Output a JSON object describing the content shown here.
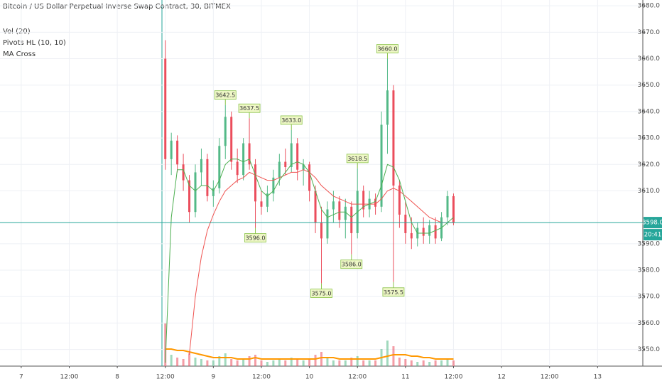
{
  "chart_data": {
    "type": "candlestick",
    "title": "Bitcoin / US Dollar Perpetual Inverse Swap Contract, 30, BITMEX",
    "indicators": [
      "Vol (20)",
      "Pivots HL (10, 10)",
      "MA Cross"
    ],
    "up_color": "#53b987",
    "down_color": "#eb4d5c",
    "grid": true,
    "ylim": [
      3543.7,
      3682.2
    ],
    "yticks": [
      {
        "value": 3550,
        "label": "3550.0"
      },
      {
        "value": 3560,
        "label": "3560.0"
      },
      {
        "value": 3570,
        "label": "3570.0"
      },
      {
        "value": 3580,
        "label": "3580.0"
      },
      {
        "value": 3590,
        "label": "3590.0"
      },
      {
        "value": 3610,
        "label": "3610.0"
      },
      {
        "value": 3620,
        "label": "3620.0"
      },
      {
        "value": 3630,
        "label": "3630.0"
      },
      {
        "value": 3640,
        "label": "3640.0"
      },
      {
        "value": 3650,
        "label": "3650.0"
      },
      {
        "value": 3660,
        "label": "3660.0"
      },
      {
        "value": 3670,
        "label": "3670.0"
      },
      {
        "value": 3680,
        "label": "3680.0"
      }
    ],
    "xlim": [
      -5.3,
      155.3
    ],
    "xticks": [
      {
        "value": 0,
        "label": "7"
      },
      {
        "value": 12,
        "label": "12:00"
      },
      {
        "value": 24,
        "label": "8"
      },
      {
        "value": 36,
        "label": "12:00"
      },
      {
        "value": 48,
        "label": "9"
      },
      {
        "value": 60,
        "label": "12:00"
      },
      {
        "value": 72,
        "label": "10"
      },
      {
        "value": 84,
        "label": "12:00"
      },
      {
        "value": 96,
        "label": "11"
      },
      {
        "value": 108,
        "label": "12:00"
      },
      {
        "value": 120,
        "label": "12"
      },
      {
        "value": 132,
        "label": "12:00"
      },
      {
        "value": 144,
        "label": "13"
      }
    ],
    "x": [
      36,
      37.5,
      39,
      40.5,
      42,
      43.5,
      45,
      46.5,
      48,
      49.5,
      51,
      52.5,
      54,
      55.5,
      57,
      58.5,
      60,
      61.5,
      63,
      64.5,
      66,
      67.5,
      69,
      70.5,
      72,
      73.5,
      75,
      76.5,
      78,
      79.5,
      81,
      82.5,
      84,
      85.5,
      87,
      88.5,
      90,
      91.5,
      93,
      94.5,
      96,
      97.5,
      99,
      100.5,
      102,
      103.5,
      105,
      106.5,
      108
    ],
    "candles": [
      [
        3660,
        3667,
        3618,
        3622
      ],
      [
        3622,
        3632,
        3616,
        3629
      ],
      [
        3629,
        3631,
        3617,
        3620
      ],
      [
        3620,
        3624,
        3610,
        3614
      ],
      [
        3614,
        3616,
        3598,
        3602
      ],
      [
        3602,
        3620,
        3600,
        3617
      ],
      [
        3617,
        3626,
        3612,
        3622
      ],
      [
        3622,
        3624,
        3606,
        3608
      ],
      [
        3608,
        3614,
        3604,
        3611
      ],
      [
        3611,
        3630,
        3609,
        3627
      ],
      [
        3627,
        3642.5,
        3622,
        3638
      ],
      [
        3638,
        3640,
        3618,
        3621
      ],
      [
        3621,
        3626,
        3613,
        3616
      ],
      [
        3616,
        3630,
        3614,
        3628
      ],
      [
        3628,
        3637.5,
        3618,
        3620
      ],
      [
        3620,
        3622,
        3596,
        3606
      ],
      [
        3606,
        3610,
        3601,
        3604
      ],
      [
        3604,
        3612,
        3602,
        3609
      ],
      [
        3609,
        3618,
        3606,
        3615
      ],
      [
        3615,
        3624,
        3612,
        3621
      ],
      [
        3621,
        3626,
        3616,
        3619
      ],
      [
        3619,
        3633,
        3617,
        3628
      ],
      [
        3628,
        3630,
        3614,
        3618
      ],
      [
        3618,
        3622,
        3612,
        3620
      ],
      [
        3620,
        3621,
        3606,
        3610
      ],
      [
        3610,
        3612,
        3594,
        3598
      ],
      [
        3598,
        3604,
        3575,
        3592
      ],
      [
        3592,
        3606,
        3590,
        3603
      ],
      [
        3603,
        3610,
        3598,
        3606
      ],
      [
        3606,
        3608,
        3596,
        3599
      ],
      [
        3599,
        3607,
        3592,
        3604
      ],
      [
        3604,
        3606,
        3586,
        3594
      ],
      [
        3594,
        3618.5,
        3592,
        3610
      ],
      [
        3610,
        3612,
        3600,
        3603
      ],
      [
        3603,
        3610,
        3600,
        3607
      ],
      [
        3607,
        3609,
        3601,
        3604
      ],
      [
        3604,
        3640,
        3602,
        3635
      ],
      [
        3635,
        3660,
        3624,
        3648
      ],
      [
        3648,
        3650,
        3575.5,
        3612
      ],
      [
        3612,
        3614,
        3596,
        3601
      ],
      [
        3601,
        3606,
        3590,
        3594
      ],
      [
        3594,
        3600,
        3588,
        3592
      ],
      [
        3592,
        3598,
        3589,
        3596
      ],
      [
        3596,
        3600,
        3590,
        3593
      ],
      [
        3593,
        3599,
        3590,
        3597
      ],
      [
        3597,
        3600,
        3590,
        3592
      ],
      [
        3592,
        3602,
        3591,
        3600
      ],
      [
        3600,
        3610,
        3597,
        3608
      ],
      [
        3608,
        3609,
        3597,
        3598
      ]
    ],
    "ma_fast": {
      "color": "#4caf50",
      "values": [
        3545,
        3600,
        3618,
        3618,
        3612,
        3610,
        3612,
        3612,
        3610,
        3614,
        3620,
        3622,
        3622,
        3621,
        3622,
        3616,
        3610,
        3608,
        3610,
        3614,
        3617,
        3620,
        3621,
        3620,
        3617,
        3610,
        3603,
        3600,
        3601,
        3602,
        3602,
        3600,
        3602,
        3604,
        3605,
        3606,
        3612,
        3620,
        3619,
        3614,
        3606,
        3598,
        3594,
        3594,
        3594,
        3595,
        3596,
        3598,
        3600
      ]
    },
    "ma_slow": {
      "color": "#ef5350",
      "values": [
        null,
        null,
        null,
        null,
        3548,
        3570,
        3585,
        3595,
        3601,
        3606,
        3610,
        3612,
        3614,
        3615,
        3617,
        3616,
        3615,
        3614,
        3614,
        3615,
        3616,
        3617,
        3617,
        3618,
        3617,
        3615,
        3612,
        3610,
        3608,
        3607,
        3606,
        3605,
        3605,
        3605,
        3605,
        3605,
        3607,
        3610,
        3611,
        3610,
        3608,
        3606,
        3604,
        3602,
        3600,
        3599,
        3598,
        3598,
        3598
      ]
    },
    "volume_ylim": [
      0,
      40
    ],
    "volumes": [
      30,
      8,
      6,
      5,
      9,
      6,
      5,
      4,
      4,
      7,
      9,
      5,
      4,
      5,
      7,
      8,
      4,
      3,
      4,
      5,
      4,
      6,
      5,
      4,
      5,
      8,
      10,
      6,
      4,
      4,
      4,
      6,
      7,
      4,
      4,
      4,
      12,
      18,
      14,
      6,
      5,
      4,
      3,
      4,
      3,
      4,
      4,
      5,
      4
    ],
    "volume_ma": {
      "color": "#ff9800",
      "values": [
        12,
        12,
        11,
        11,
        10,
        9,
        8,
        7,
        6,
        6,
        6,
        6,
        5,
        5,
        5,
        6,
        5,
        5,
        5,
        5,
        5,
        5,
        5,
        5,
        5,
        5,
        6,
        6,
        6,
        5,
        5,
        5,
        5,
        5,
        5,
        5,
        6,
        7,
        8,
        8,
        8,
        7,
        7,
        6,
        6,
        5,
        5,
        5,
        5
      ]
    },
    "pivot_highs": [
      {
        "x": 51,
        "value": 3642.5,
        "label": "3642.5"
      },
      {
        "x": 57,
        "value": 3637.5,
        "label": "3637.5"
      },
      {
        "x": 67.5,
        "value": 3633,
        "label": "3633.0"
      },
      {
        "x": 84,
        "value": 3618.5,
        "label": "3618.5"
      },
      {
        "x": 91.5,
        "value": 3660,
        "label": "3660.0"
      }
    ],
    "pivot_lows": [
      {
        "x": 58.5,
        "value": 3596,
        "label": "3596.0"
      },
      {
        "x": 75,
        "value": 3575,
        "label": "3575.0"
      },
      {
        "x": 82.5,
        "value": 3586,
        "label": "3586.0"
      },
      {
        "x": 93,
        "value": 3575.5,
        "label": "3575.5"
      }
    ],
    "last_price": {
      "value": 3598,
      "label": "3598.0"
    },
    "countdown": "20:41",
    "price_line_color": "#26a69a"
  }
}
